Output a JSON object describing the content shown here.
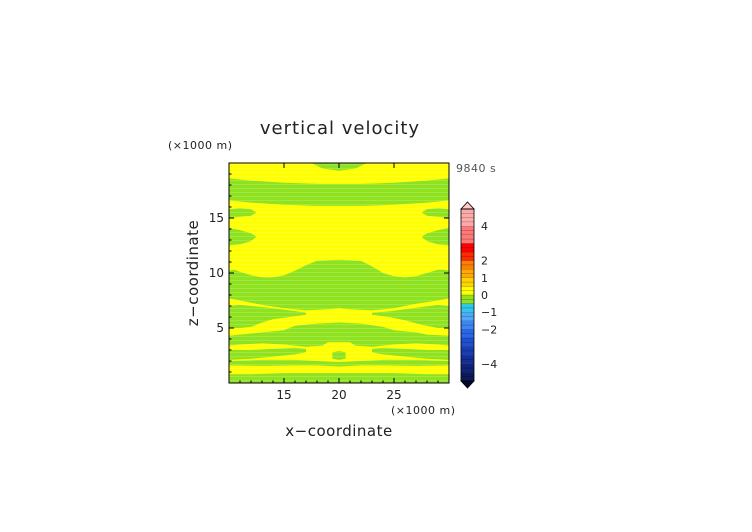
{
  "chart_data": {
    "type": "heatmap",
    "title": "vertical velocity",
    "time_label": "9840 s",
    "xlabel": "x−coordinate",
    "ylabel": "z−coordinate",
    "x_unit": "(×1000 m)",
    "y_unit": "(×1000 m)",
    "xlim": [
      10,
      30
    ],
    "ylim": [
      0,
      20
    ],
    "xticks": [
      15,
      20,
      25
    ],
    "yticks": [
      5,
      10,
      15
    ],
    "colorbar": {
      "levels": [
        {
          "lo": -5,
          "hi": -4.5,
          "color": "#0a1a5a"
        },
        {
          "lo": -4.5,
          "hi": -4,
          "color": "#10237a"
        },
        {
          "lo": -4,
          "hi": -3.5,
          "color": "#142e96"
        },
        {
          "lo": -3.5,
          "hi": -3,
          "color": "#1a3cb4"
        },
        {
          "lo": -3,
          "hi": -2.5,
          "color": "#2050d2"
        },
        {
          "lo": -2.5,
          "hi": -2,
          "color": "#2a66e8"
        },
        {
          "lo": -2,
          "hi": -1.5,
          "color": "#3a86f4"
        },
        {
          "lo": -1.5,
          "hi": -1,
          "color": "#4fa8f8"
        },
        {
          "lo": -1,
          "hi": -0.5,
          "color": "#2ec8e8"
        },
        {
          "lo": -0.5,
          "hi": 0,
          "color": "#8ee21e"
        },
        {
          "lo": 0,
          "hi": 0.5,
          "color": "#ffff00"
        },
        {
          "lo": 0.5,
          "hi": 1,
          "color": "#ffd200"
        },
        {
          "lo": 1,
          "hi": 1.5,
          "color": "#ffaa00"
        },
        {
          "lo": 1.5,
          "hi": 2,
          "color": "#ff7f00"
        },
        {
          "lo": 2,
          "hi": 2.5,
          "color": "#ff2a00"
        },
        {
          "lo": 2.5,
          "hi": 3,
          "color": "#ff0000"
        },
        {
          "lo": 3,
          "hi": 4,
          "color": "#ff7878"
        },
        {
          "lo": 4,
          "hi": 5,
          "color": "#ffaaaa"
        }
      ],
      "tick_labels": [
        {
          "value": 4,
          "label": "4"
        },
        {
          "value": 2,
          "label": "2"
        },
        {
          "value": 1,
          "label": "1"
        },
        {
          "value": 0,
          "label": "0"
        },
        {
          "value": -1,
          "label": "−1"
        },
        {
          "value": -2,
          "label": "−2"
        },
        {
          "value": -4,
          "label": "−4"
        }
      ],
      "over_color": "#ffc8c8",
      "under_color": "#050a28"
    },
    "background_value_color": "#ffff00",
    "regions": [
      {
        "value": "0 to -0.5",
        "x": [
          10,
          12,
          15,
          18,
          20,
          22,
          25,
          28,
          30,
          30,
          28,
          25,
          22,
          20,
          18,
          15,
          12,
          10
        ],
        "z": [
          0.0,
          0.0,
          0.0,
          0.0,
          0.0,
          0.0,
          0.0,
          0.0,
          0.0,
          0.8,
          0.8,
          0.9,
          0.9,
          0.9,
          0.9,
          0.9,
          0.8,
          0.8
        ]
      },
      {
        "value": "0 to -0.5",
        "x": [
          10,
          13,
          16,
          18,
          20,
          22,
          24,
          27,
          30,
          30,
          27,
          24,
          22,
          20,
          18,
          16,
          13,
          10
        ],
        "z": [
          1.6,
          1.55,
          1.6,
          1.6,
          1.5,
          1.6,
          1.6,
          1.55,
          1.6,
          2.0,
          2.1,
          2.1,
          2.0,
          1.9,
          2.0,
          2.1,
          2.1,
          2.0
        ]
      },
      {
        "value": "0 to -0.5",
        "x": [
          10,
          12,
          14,
          16,
          17,
          17,
          16,
          14,
          12,
          10
        ],
        "z": [
          2.1,
          2.2,
          2.4,
          2.6,
          2.8,
          3.1,
          3.2,
          3.1,
          3.0,
          3.0
        ]
      },
      {
        "value": "0 to -0.5",
        "x": [
          23,
          24,
          26,
          28,
          30,
          30,
          28,
          26,
          24,
          23
        ],
        "z": [
          2.8,
          2.6,
          2.4,
          2.2,
          2.1,
          3.0,
          3.0,
          3.1,
          3.2,
          3.1
        ]
      },
      {
        "value": "0 to -0.5",
        "x": [
          19.4,
          20,
          20.6,
          20.6,
          20,
          19.4
        ],
        "z": [
          2.2,
          2.1,
          2.2,
          2.8,
          2.9,
          2.8
        ]
      },
      {
        "value": "0 to -0.5",
        "x": [
          10,
          11,
          13,
          15,
          17,
          18.5,
          19,
          21,
          21.5,
          23,
          25,
          27,
          29,
          30,
          30,
          28,
          27,
          25,
          24,
          22,
          20,
          18,
          16,
          15,
          13,
          12,
          11,
          10
        ],
        "z": [
          3.4,
          3.5,
          3.6,
          3.5,
          3.3,
          3.4,
          3.7,
          3.7,
          3.4,
          3.3,
          3.5,
          3.6,
          3.5,
          3.4,
          4.3,
          4.4,
          4.6,
          4.8,
          5.1,
          5.4,
          5.5,
          5.4,
          5.2,
          4.8,
          4.6,
          4.5,
          4.4,
          4.3
        ]
      },
      {
        "value": "0 to -0.5",
        "x": [
          10,
          11,
          12,
          13,
          14,
          15.5,
          17,
          17,
          15.5,
          14,
          12,
          11,
          10
        ],
        "z": [
          5.0,
          5.0,
          5.1,
          5.5,
          5.8,
          6.0,
          6.2,
          6.4,
          6.6,
          6.8,
          7.0,
          7.1,
          7.0
        ]
      },
      {
        "value": "0 to -0.5",
        "x": [
          23,
          24.5,
          26,
          27.5,
          29,
          30,
          30,
          29,
          27.5,
          26,
          24.5,
          23
        ],
        "z": [
          6.2,
          6.0,
          5.7,
          5.3,
          5.0,
          5.0,
          7.0,
          7.1,
          6.9,
          6.7,
          6.5,
          6.4
        ]
      },
      {
        "value": "0 to -0.5",
        "x": [
          10,
          11,
          13,
          15,
          17,
          19,
          20,
          21,
          23,
          25,
          27,
          29,
          30,
          30,
          29.5,
          29,
          28,
          27,
          26,
          25,
          24,
          23,
          22,
          20,
          18,
          17,
          16,
          15,
          14,
          13,
          12,
          11,
          10.5,
          10
        ],
        "z": [
          7.7,
          7.5,
          7.1,
          6.8,
          6.6,
          6.7,
          6.8,
          6.7,
          6.6,
          6.8,
          7.2,
          7.5,
          7.7,
          10.2,
          10.3,
          10.3,
          10.0,
          9.7,
          9.6,
          9.7,
          10.0,
          10.6,
          11.1,
          11.2,
          11.1,
          10.7,
          10.2,
          9.8,
          9.6,
          9.6,
          9.8,
          10.1,
          10.3,
          10.2
        ]
      },
      {
        "value": "0 to -0.5",
        "x": [
          10,
          11,
          12,
          12.5,
          12,
          11,
          10
        ],
        "z": [
          12.5,
          12.6,
          12.9,
          13.3,
          13.6,
          13.9,
          14.1
        ]
      },
      {
        "value": "0 to -0.5",
        "x": [
          30,
          29,
          28,
          27.5,
          28,
          29,
          30
        ],
        "z": [
          12.5,
          12.6,
          12.9,
          13.3,
          13.6,
          13.9,
          14.1
        ]
      },
      {
        "value": "0 to -0.5",
        "x": [
          10,
          11,
          12,
          12.5,
          12,
          11,
          10
        ],
        "z": [
          15.0,
          15.1,
          15.2,
          15.5,
          15.8,
          15.9,
          15.8
        ]
      },
      {
        "value": "0 to -0.5",
        "x": [
          30,
          29,
          28,
          27.5,
          28,
          29,
          30
        ],
        "z": [
          15.0,
          15.1,
          15.2,
          15.5,
          15.8,
          15.9,
          15.8
        ]
      },
      {
        "value": "0 to -0.5",
        "x": [
          10,
          12,
          15,
          18,
          20,
          22,
          25,
          28,
          30,
          30,
          28,
          25,
          22,
          20,
          18,
          15,
          12,
          10
        ],
        "z": [
          16.6,
          16.4,
          16.2,
          16.1,
          16.1,
          16.1,
          16.2,
          16.4,
          16.6,
          18.6,
          18.4,
          18.2,
          18.1,
          18.1,
          18.1,
          18.2,
          18.4,
          18.6
        ]
      },
      {
        "value": "0 to -0.5",
        "x": [
          17.5,
          18.5,
          20,
          21.5,
          22.5,
          22.5,
          17.5
        ],
        "z": [
          20.0,
          19.5,
          19.3,
          19.5,
          20.0,
          20.0,
          20.0
        ]
      }
    ]
  }
}
